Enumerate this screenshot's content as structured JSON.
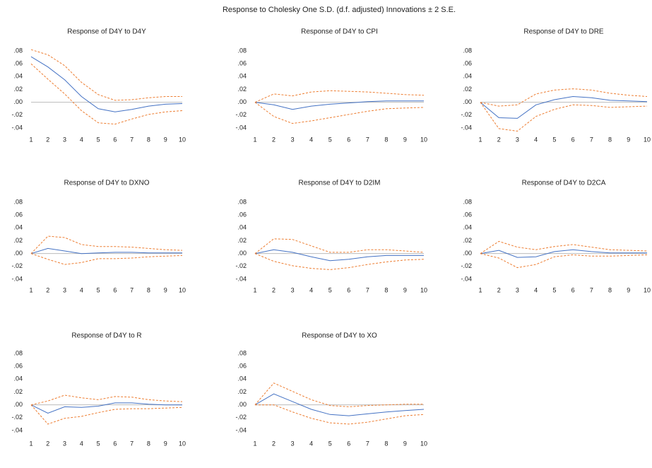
{
  "title": "Response to Cholesky One S.D. (d.f. adjusted) Innovations ± 2 S.E.",
  "chart_data": [
    {
      "type": "line",
      "title": "Response of D4Y to D4Y",
      "categories": [
        1,
        2,
        3,
        4,
        5,
        6,
        7,
        8,
        9,
        10
      ],
      "ylim": [
        -0.048,
        0.088
      ],
      "yticks": [
        {
          "value": -0.04,
          "label": "-.04"
        },
        {
          "value": -0.02,
          "label": "-.02"
        },
        {
          "value": 0,
          "label": ".00"
        },
        {
          "value": 0.02,
          "label": ".02"
        },
        {
          "value": 0.04,
          "label": ".04"
        },
        {
          "value": 0.06,
          "label": ".06"
        },
        {
          "value": 0.08,
          "label": ".08"
        }
      ],
      "series": [
        {
          "color": "#4472c4",
          "style": "solid",
          "values": [
            0.071,
            0.055,
            0.035,
            0.009,
            -0.01,
            -0.015,
            -0.011,
            -0.006,
            -0.003,
            -0.002
          ]
        },
        {
          "color": "#ed7d31",
          "style": "dashed",
          "values": [
            0.082,
            0.074,
            0.057,
            0.031,
            0.012,
            0.003,
            0.004,
            0.007,
            0.009,
            0.009
          ]
        },
        {
          "color": "#ed7d31",
          "style": "dashed",
          "values": [
            0.06,
            0.036,
            0.013,
            -0.013,
            -0.032,
            -0.034,
            -0.026,
            -0.019,
            -0.015,
            -0.013
          ]
        }
      ]
    },
    {
      "type": "line",
      "title": "Response of D4Y to CPI",
      "categories": [
        1,
        2,
        3,
        4,
        5,
        6,
        7,
        8,
        9,
        10
      ],
      "ylim": [
        -0.048,
        0.088
      ],
      "yticks": [
        {
          "value": -0.04,
          "label": "-.04"
        },
        {
          "value": -0.02,
          "label": "-.02"
        },
        {
          "value": 0,
          "label": ".00"
        },
        {
          "value": 0.02,
          "label": ".02"
        },
        {
          "value": 0.04,
          "label": ".04"
        },
        {
          "value": 0.06,
          "label": ".06"
        },
        {
          "value": 0.08,
          "label": ".08"
        }
      ],
      "series": [
        {
          "color": "#4472c4",
          "style": "solid",
          "values": [
            0,
            -0.004,
            -0.011,
            -0.006,
            -0.003,
            -0.001,
            0.001,
            0.002,
            0.002,
            0.002
          ]
        },
        {
          "color": "#ed7d31",
          "style": "dashed",
          "values": [
            0,
            0.013,
            0.01,
            0.016,
            0.018,
            0.017,
            0.016,
            0.014,
            0.012,
            0.011
          ]
        },
        {
          "color": "#ed7d31",
          "style": "dashed",
          "values": [
            0,
            -0.022,
            -0.033,
            -0.029,
            -0.024,
            -0.019,
            -0.014,
            -0.01,
            -0.009,
            -0.008
          ]
        }
      ]
    },
    {
      "type": "line",
      "title": "Response of D4Y to DRE",
      "categories": [
        1,
        2,
        3,
        4,
        5,
        6,
        7,
        8,
        9,
        10
      ],
      "ylim": [
        -0.048,
        0.088
      ],
      "yticks": [
        {
          "value": -0.04,
          "label": "-.04"
        },
        {
          "value": -0.02,
          "label": "-.02"
        },
        {
          "value": 0,
          "label": ".00"
        },
        {
          "value": 0.02,
          "label": ".02"
        },
        {
          "value": 0.04,
          "label": ".04"
        },
        {
          "value": 0.06,
          "label": ".06"
        },
        {
          "value": 0.08,
          "label": ".08"
        }
      ],
      "series": [
        {
          "color": "#4472c4",
          "style": "solid",
          "values": [
            0,
            -0.024,
            -0.025,
            -0.004,
            0.004,
            0.009,
            0.007,
            0.003,
            0.002,
            0.001
          ]
        },
        {
          "color": "#ed7d31",
          "style": "dashed",
          "values": [
            0,
            -0.006,
            -0.004,
            0.013,
            0.019,
            0.021,
            0.019,
            0.014,
            0.011,
            0.009
          ]
        },
        {
          "color": "#ed7d31",
          "style": "dashed",
          "values": [
            0,
            -0.041,
            -0.045,
            -0.022,
            -0.011,
            -0.004,
            -0.005,
            -0.008,
            -0.007,
            -0.006
          ]
        }
      ]
    },
    {
      "type": "line",
      "title": "Response of D4Y to DXNO",
      "categories": [
        1,
        2,
        3,
        4,
        5,
        6,
        7,
        8,
        9,
        10
      ],
      "ylim": [
        -0.048,
        0.088
      ],
      "yticks": [
        {
          "value": -0.04,
          "label": "-.04"
        },
        {
          "value": -0.02,
          "label": "-.02"
        },
        {
          "value": 0,
          "label": ".00"
        },
        {
          "value": 0.02,
          "label": ".02"
        },
        {
          "value": 0.04,
          "label": ".04"
        },
        {
          "value": 0.06,
          "label": ".06"
        },
        {
          "value": 0.08,
          "label": ".08"
        }
      ],
      "series": [
        {
          "color": "#4472c4",
          "style": "solid",
          "values": [
            0,
            0.008,
            0.004,
            0.0,
            0.001,
            0.002,
            0.002,
            0.001,
            0.001,
            0.001
          ]
        },
        {
          "color": "#ed7d31",
          "style": "dashed",
          "values": [
            0,
            0.027,
            0.025,
            0.014,
            0.011,
            0.011,
            0.01,
            0.008,
            0.006,
            0.005
          ]
        },
        {
          "color": "#ed7d31",
          "style": "dashed",
          "values": [
            0,
            -0.009,
            -0.017,
            -0.014,
            -0.008,
            -0.008,
            -0.007,
            -0.005,
            -0.004,
            -0.003
          ]
        }
      ]
    },
    {
      "type": "line",
      "title": "Response of D4Y to D2IM",
      "categories": [
        1,
        2,
        3,
        4,
        5,
        6,
        7,
        8,
        9,
        10
      ],
      "ylim": [
        -0.048,
        0.088
      ],
      "yticks": [
        {
          "value": -0.04,
          "label": "-.04"
        },
        {
          "value": -0.02,
          "label": "-.02"
        },
        {
          "value": 0,
          "label": ".00"
        },
        {
          "value": 0.02,
          "label": ".02"
        },
        {
          "value": 0.04,
          "label": ".04"
        },
        {
          "value": 0.06,
          "label": ".06"
        },
        {
          "value": 0.08,
          "label": ".08"
        }
      ],
      "series": [
        {
          "color": "#4472c4",
          "style": "solid",
          "values": [
            0,
            0.006,
            0.002,
            -0.005,
            -0.011,
            -0.009,
            -0.005,
            -0.003,
            -0.003,
            -0.003
          ]
        },
        {
          "color": "#ed7d31",
          "style": "dashed",
          "values": [
            0,
            0.023,
            0.022,
            0.012,
            0.002,
            0.002,
            0.006,
            0.006,
            0.004,
            0.002
          ]
        },
        {
          "color": "#ed7d31",
          "style": "dashed",
          "values": [
            0,
            -0.012,
            -0.019,
            -0.023,
            -0.025,
            -0.022,
            -0.017,
            -0.013,
            -0.01,
            -0.009
          ]
        }
      ]
    },
    {
      "type": "line",
      "title": "Response of D4Y to D2CA",
      "categories": [
        1,
        2,
        3,
        4,
        5,
        6,
        7,
        8,
        9,
        10
      ],
      "ylim": [
        -0.048,
        0.088
      ],
      "yticks": [
        {
          "value": -0.04,
          "label": "-.04"
        },
        {
          "value": -0.02,
          "label": "-.02"
        },
        {
          "value": 0,
          "label": ".00"
        },
        {
          "value": 0.02,
          "label": ".02"
        },
        {
          "value": 0.04,
          "label": ".04"
        },
        {
          "value": 0.06,
          "label": ".06"
        },
        {
          "value": 0.08,
          "label": ".08"
        }
      ],
      "series": [
        {
          "color": "#4472c4",
          "style": "solid",
          "values": [
            0,
            0.005,
            -0.006,
            -0.005,
            0.003,
            0.006,
            0.003,
            0.001,
            0.001,
            0.001
          ]
        },
        {
          "color": "#ed7d31",
          "style": "dashed",
          "values": [
            0,
            0.019,
            0.01,
            0.006,
            0.011,
            0.014,
            0.01,
            0.006,
            0.005,
            0.004
          ]
        },
        {
          "color": "#ed7d31",
          "style": "dashed",
          "values": [
            0,
            -0.007,
            -0.022,
            -0.017,
            -0.005,
            -0.002,
            -0.004,
            -0.004,
            -0.003,
            -0.002
          ]
        }
      ]
    },
    {
      "type": "line",
      "title": "Response of D4Y to R",
      "categories": [
        1,
        2,
        3,
        4,
        5,
        6,
        7,
        8,
        9,
        10
      ],
      "ylim": [
        -0.048,
        0.088
      ],
      "yticks": [
        {
          "value": -0.04,
          "label": "-.04"
        },
        {
          "value": -0.02,
          "label": "-.02"
        },
        {
          "value": 0,
          "label": ".00"
        },
        {
          "value": 0.02,
          "label": ".02"
        },
        {
          "value": 0.04,
          "label": ".04"
        },
        {
          "value": 0.06,
          "label": ".06"
        },
        {
          "value": 0.08,
          "label": ".08"
        }
      ],
      "series": [
        {
          "color": "#4472c4",
          "style": "solid",
          "values": [
            0,
            -0.013,
            -0.003,
            -0.004,
            -0.002,
            0.003,
            0.003,
            0.001,
            0.0,
            0.0
          ]
        },
        {
          "color": "#ed7d31",
          "style": "dashed",
          "values": [
            0,
            0.006,
            0.015,
            0.011,
            0.008,
            0.013,
            0.012,
            0.008,
            0.006,
            0.005
          ]
        },
        {
          "color": "#ed7d31",
          "style": "dashed",
          "values": [
            0,
            -0.03,
            -0.021,
            -0.018,
            -0.012,
            -0.007,
            -0.006,
            -0.006,
            -0.005,
            -0.004
          ]
        }
      ]
    },
    {
      "type": "line",
      "title": "Response of D4Y to XO",
      "categories": [
        1,
        2,
        3,
        4,
        5,
        6,
        7,
        8,
        9,
        10
      ],
      "ylim": [
        -0.048,
        0.088
      ],
      "yticks": [
        {
          "value": -0.04,
          "label": "-.04"
        },
        {
          "value": -0.02,
          "label": "-.02"
        },
        {
          "value": 0,
          "label": ".00"
        },
        {
          "value": 0.02,
          "label": ".02"
        },
        {
          "value": 0.04,
          "label": ".04"
        },
        {
          "value": 0.06,
          "label": ".06"
        },
        {
          "value": 0.08,
          "label": ".08"
        }
      ],
      "series": [
        {
          "color": "#4472c4",
          "style": "solid",
          "values": [
            0,
            0.017,
            0.005,
            -0.007,
            -0.015,
            -0.017,
            -0.014,
            -0.011,
            -0.009,
            -0.007
          ]
        },
        {
          "color": "#ed7d31",
          "style": "dashed",
          "values": [
            0,
            0.034,
            0.021,
            0.008,
            -0.001,
            -0.003,
            -0.001,
            0.0,
            0.001,
            0.001
          ]
        },
        {
          "color": "#ed7d31",
          "style": "dashed",
          "values": [
            0,
            0.0,
            -0.011,
            -0.021,
            -0.028,
            -0.03,
            -0.027,
            -0.022,
            -0.017,
            -0.015
          ]
        }
      ]
    }
  ]
}
